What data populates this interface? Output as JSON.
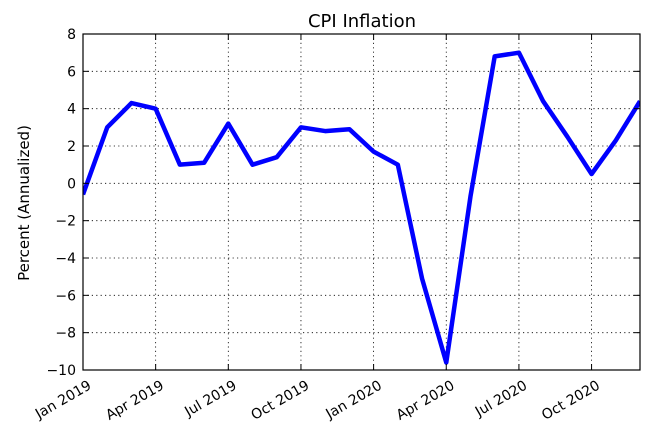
{
  "chart_data": {
    "type": "line",
    "title": "CPI Inflation",
    "xlabel": "",
    "ylabel": "Percent (Annualized)",
    "ylim": [
      -10,
      8
    ],
    "xlim": [
      "2019-01",
      "2020-12"
    ],
    "grid": true,
    "yticks": [
      -10,
      -8,
      -6,
      -4,
      -2,
      0,
      2,
      4,
      6,
      8
    ],
    "ytick_labels": [
      "−10",
      "−8",
      "−6",
      "−4",
      "−2",
      "0",
      "2",
      "4",
      "6",
      "8"
    ],
    "xticks": [
      "2019-01",
      "2019-04",
      "2019-07",
      "2019-10",
      "2020-01",
      "2020-04",
      "2020-07",
      "2020-10"
    ],
    "xtick_labels": [
      "Jan 2019",
      "Apr 2019",
      "Jul 2019",
      "Oct 2019",
      "Jan 2020",
      "Apr 2020",
      "Jul 2020",
      "Oct 2020"
    ],
    "series": [
      {
        "color": "#0000ff",
        "x": [
          "2019-01",
          "2019-02",
          "2019-03",
          "2019-04",
          "2019-05",
          "2019-06",
          "2019-07",
          "2019-08",
          "2019-09",
          "2019-10",
          "2019-11",
          "2019-12",
          "2020-01",
          "2020-02",
          "2020-03",
          "2020-04",
          "2020-05",
          "2020-06",
          "2020-07",
          "2020-08",
          "2020-09",
          "2020-10",
          "2020-11",
          "2020-12"
        ],
        "values": [
          -0.6,
          3.0,
          4.3,
          4.0,
          1.0,
          1.1,
          3.2,
          1.0,
          1.4,
          3.0,
          2.8,
          2.9,
          1.7,
          1.0,
          -5.1,
          -9.6,
          -0.7,
          6.8,
          7.0,
          4.4,
          2.5,
          0.5,
          2.3,
          4.4
        ]
      }
    ]
  }
}
